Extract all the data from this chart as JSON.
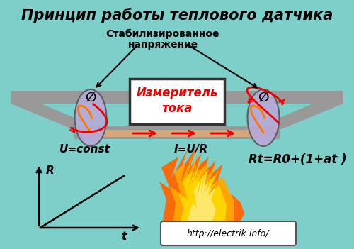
{
  "title": "Принцип работы теплового датчика",
  "subtitle1": "Стабилизированное",
  "subtitle2": "напряжение",
  "bg_color": "#7ececa",
  "label_u": "U=const",
  "label_i": "I=U/R",
  "label_rt": "Rt=R0+(1+at )",
  "label_r": "R",
  "label_t": "t",
  "box_text1": "Измеритель",
  "box_text2": "тока",
  "url_text": "http://electrik.info/",
  "track_color": "#999999",
  "wire_color": "#d4a878",
  "arrow_color": "#ee0000",
  "box_bg": "#ffffff",
  "box_border": "#333333",
  "bulb_color": "#b8aad8",
  "title_fontsize": 15,
  "subtitle_fontsize": 10
}
